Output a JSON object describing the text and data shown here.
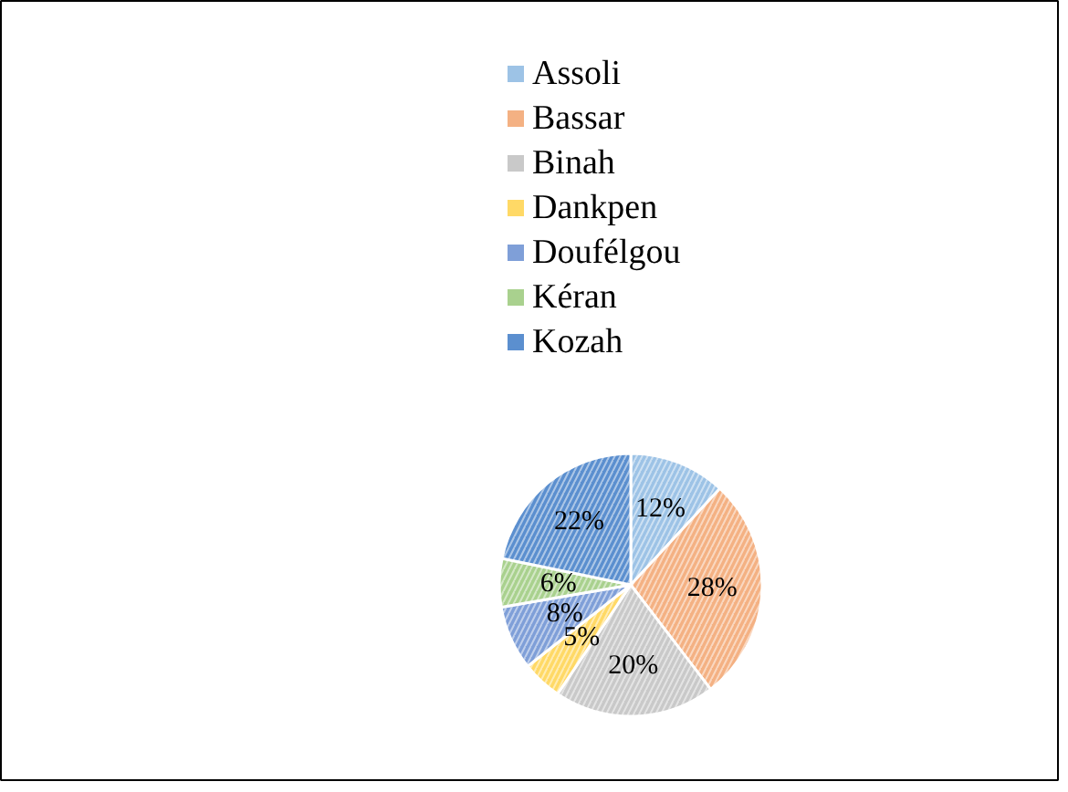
{
  "chart_data": {
    "type": "pie",
    "categories": [
      "Assoli",
      "Bassar",
      "Binah",
      "Dankpen",
      "Doufélgou",
      "Kéran",
      "Kozah"
    ],
    "values": [
      12,
      28,
      20,
      5,
      8,
      6,
      22
    ],
    "colors": [
      "#9dc3e6",
      "#f4b183",
      "#c9c9c9",
      "#ffd966",
      "#7f9fd8",
      "#a9d18e",
      "#5b8fcf"
    ],
    "value_labels": [
      "12%",
      "28%",
      "20%",
      "5%",
      "8%",
      "6%",
      "22%"
    ],
    "legend": "top"
  }
}
